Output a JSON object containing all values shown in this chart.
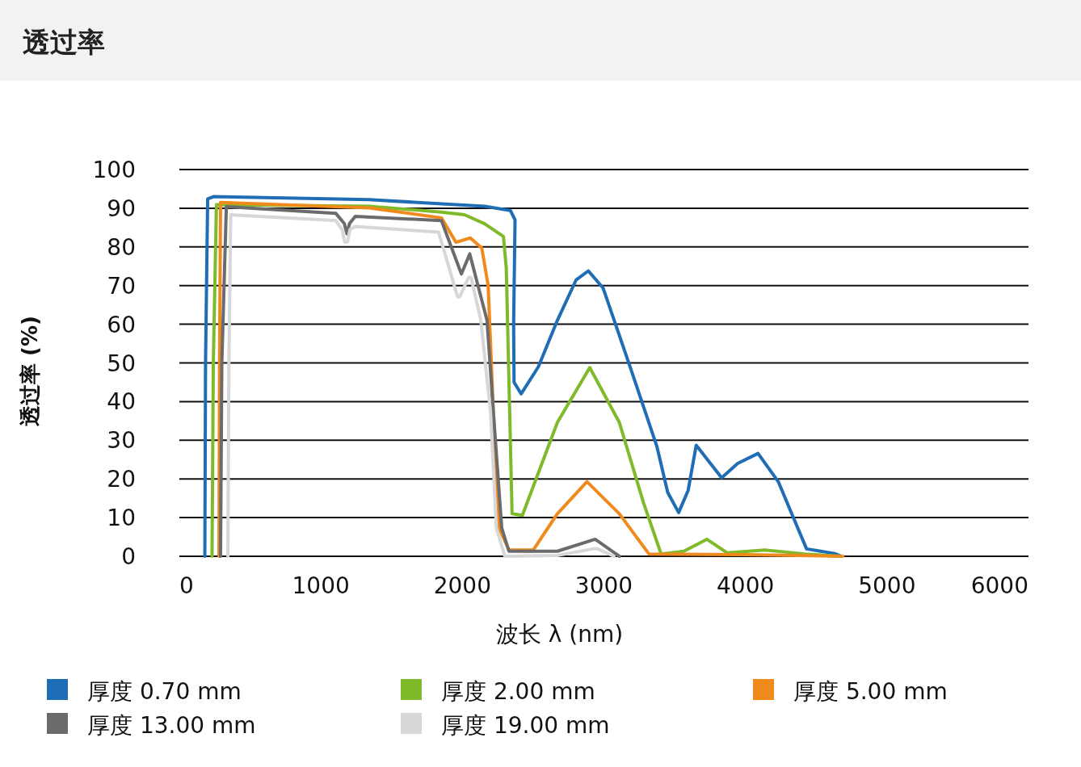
{
  "chart_data": {
    "type": "line",
    "title": "透过率",
    "xlabel": "波长 λ (nm)",
    "ylabel": "透过率 (%)",
    "xlim": [
      0,
      6000
    ],
    "xticks": [
      0,
      1000,
      2000,
      3000,
      4000,
      5000,
      6000
    ],
    "ylim": [
      0,
      100
    ],
    "yticks": [
      0,
      10,
      20,
      30,
      40,
      50,
      60,
      70,
      80,
      90,
      100
    ],
    "grid": "y",
    "legend": "bottom",
    "series": [
      {
        "name": "厚度 0.70 mm",
        "color": "#1f6db5",
        "x": [
          180,
          185,
          200,
          241,
          1342,
          2157,
          2340,
          2372,
          2362,
          2365,
          2415,
          2537,
          2671,
          2804,
          2890,
          2995,
          3185,
          3375,
          3451,
          3528,
          3595,
          3652,
          3832,
          3945,
          4089,
          4232,
          4327,
          4432,
          4631,
          4678
        ],
        "values": [
          0,
          50,
          92.4,
          93,
          92.2,
          90.5,
          89.4,
          87,
          60,
          45,
          42,
          49,
          61,
          71.5,
          73.8,
          69.3,
          49,
          28.3,
          16.5,
          11.3,
          17,
          28.7,
          20.3,
          24,
          26.6,
          19.3,
          11,
          1.9,
          0.7,
          0
        ]
      },
      {
        "name": "厚度 2.00 mm",
        "color": "#7fba2a",
        "x": [
          231,
          240,
          262,
          1342,
          1852,
          2015,
          2157,
          2290,
          2310,
          2351,
          2424,
          2671,
          2900,
          3109,
          3280,
          3404,
          3565,
          3727,
          3870,
          4136,
          4420,
          4668
        ],
        "values": [
          0,
          50,
          90.9,
          90.5,
          89,
          88.3,
          86,
          82.7,
          74.5,
          11,
          10.6,
          34.6,
          48.8,
          34.6,
          13.8,
          0.6,
          1.3,
          4.4,
          0.9,
          1.6,
          0.6,
          0
        ]
      },
      {
        "name": "厚度 5.00 mm",
        "color": "#f08a1c",
        "x": [
          280,
          284,
          291,
          1342,
          1852,
          1954,
          2056,
          2137,
          2182,
          2219,
          2259,
          2329,
          2500,
          2671,
          2880,
          3109,
          3318,
          4000,
          4688
        ],
        "values": [
          0,
          50,
          91.5,
          90.1,
          87.5,
          81.2,
          82.3,
          79.7,
          70,
          37.2,
          7.3,
          1.6,
          1.6,
          11,
          19.3,
          11,
          0.6,
          0.4,
          0
        ]
      },
      {
        "name": "厚度 13.00 mm",
        "color": "#6b6b6d",
        "x": [
          291,
          300,
          332,
          1105,
          1166,
          1184,
          1202,
          1243,
          1852,
          1993,
          2052,
          2174,
          2219,
          2278,
          2329,
          2671,
          2938,
          3109
        ],
        "values": [
          0,
          50,
          90.4,
          88.7,
          86,
          83.4,
          86,
          87.9,
          86.8,
          73,
          78.2,
          61,
          37.2,
          7.3,
          1.3,
          1.3,
          4.4,
          0
        ]
      },
      {
        "name": "厚度 19.00 mm",
        "color": "#d7d7d9",
        "x": [
          343,
          350,
          363,
          1105,
          1150,
          1168,
          1178,
          1188,
          1206,
          1243,
          1832,
          1964,
          1974,
          1984,
          2042,
          2052,
          2062,
          2130,
          2199,
          2240,
          2300,
          2671,
          2920,
          2938,
          2956,
          3071
        ],
        "values": [
          0,
          50,
          88.3,
          86.8,
          84.5,
          81.3,
          81.2,
          81.3,
          84.5,
          85.3,
          83.8,
          67.3,
          67,
          67.3,
          72,
          72.2,
          72,
          61,
          37.2,
          7.3,
          0,
          0.2,
          1.9,
          2,
          1.9,
          0
        ]
      }
    ]
  }
}
